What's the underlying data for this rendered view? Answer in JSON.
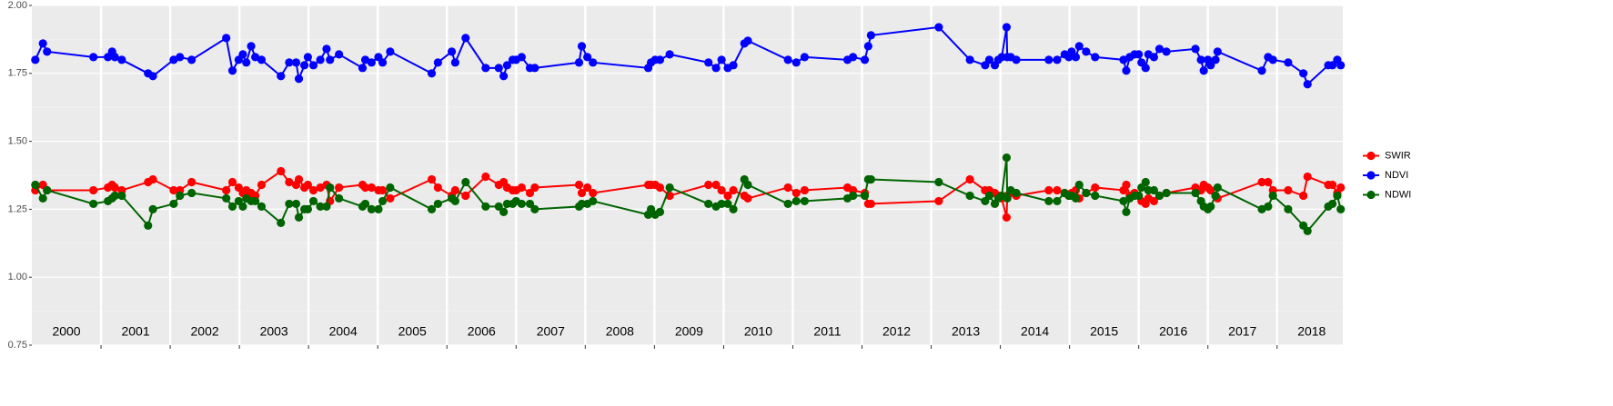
{
  "chart_data": {
    "type": "line",
    "x": [
      2000.05,
      2000.16,
      2000.22,
      2000.89,
      2001.1,
      2001.16,
      2001.2,
      2001.3,
      2001.68,
      2001.75,
      2002.05,
      2002.14,
      2002.31,
      2002.81,
      2002.9,
      2002.99,
      2003.05,
      2003.1,
      2003.17,
      2003.23,
      2003.32,
      2003.6,
      2003.72,
      2003.82,
      2003.86,
      2003.94,
      2003.99,
      2004.07,
      2004.17,
      2004.26,
      2004.31,
      2004.44,
      2004.78,
      2004.82,
      2004.91,
      2005.01,
      2005.07,
      2005.18,
      2005.78,
      2005.87,
      2006.07,
      2006.12,
      2006.27,
      2006.56,
      2006.75,
      2006.82,
      2006.87,
      2006.95,
      2007.0,
      2007.08,
      2007.2,
      2007.27,
      2007.91,
      2007.95,
      2008.03,
      2008.11,
      2008.91,
      2008.95,
      2009.01,
      2009.08,
      2009.22,
      2009.78,
      2009.89,
      2009.97,
      2010.06,
      2010.14,
      2010.3,
      2010.35,
      2010.93,
      2011.05,
      2011.17,
      2011.79,
      2011.87,
      2012.04,
      2012.09,
      2012.13,
      2013.11,
      2013.56,
      2013.78,
      2013.84,
      2013.92,
      2013.97,
      2014.02,
      2014.09,
      2014.1,
      2014.15,
      2014.23,
      2014.7,
      2014.82,
      2014.93,
      2014.99,
      2015.03,
      2015.09,
      2015.14,
      2015.24,
      2015.37,
      2015.78,
      2015.82,
      2015.87,
      2015.94,
      2016.0,
      2016.04,
      2016.1,
      2016.14,
      2016.22,
      2016.3,
      2016.4,
      2016.82,
      2016.9,
      2016.94,
      2017.0,
      2017.04,
      2017.11,
      2017.14,
      2017.78,
      2017.87,
      2017.94,
      2018.16,
      2018.38,
      2018.44,
      2018.74,
      2018.8,
      2018.87,
      2018.92
    ],
    "series": [
      {
        "name": "SWIR",
        "color": "#ff0000",
        "values": [
          1.32,
          1.34,
          1.32,
          1.32,
          1.33,
          1.34,
          1.33,
          1.32,
          1.35,
          1.36,
          1.32,
          1.32,
          1.35,
          1.32,
          1.35,
          1.33,
          1.31,
          1.32,
          1.31,
          1.3,
          1.34,
          1.39,
          1.35,
          1.34,
          1.36,
          1.33,
          1.34,
          1.32,
          1.33,
          1.34,
          1.28,
          1.33,
          1.34,
          1.33,
          1.33,
          1.32,
          1.32,
          1.29,
          1.36,
          1.33,
          1.3,
          1.32,
          1.3,
          1.37,
          1.34,
          1.35,
          1.33,
          1.32,
          1.32,
          1.33,
          1.31,
          1.33,
          1.34,
          1.31,
          1.33,
          1.31,
          1.34,
          1.34,
          1.34,
          1.33,
          1.3,
          1.34,
          1.34,
          1.32,
          1.3,
          1.32,
          1.3,
          1.29,
          1.33,
          1.31,
          1.32,
          1.33,
          1.32,
          1.31,
          1.27,
          1.27,
          1.28,
          1.36,
          1.32,
          1.32,
          1.31,
          1.3,
          1.29,
          1.22,
          1.3,
          1.31,
          1.3,
          1.32,
          1.32,
          1.31,
          1.3,
          1.31,
          1.32,
          1.29,
          1.31,
          1.33,
          1.32,
          1.34,
          1.3,
          1.31,
          1.3,
          1.28,
          1.27,
          1.29,
          1.28,
          1.3,
          1.31,
          1.33,
          1.32,
          1.34,
          1.33,
          1.32,
          1.3,
          1.29,
          1.35,
          1.35,
          1.32,
          1.32,
          1.3,
          1.37,
          1.34,
          1.34,
          1.31,
          1.33
        ]
      },
      {
        "name": "NDVI",
        "color": "#0000ff",
        "values": [
          1.8,
          1.86,
          1.83,
          1.81,
          1.81,
          1.83,
          1.81,
          1.8,
          1.75,
          1.74,
          1.8,
          1.81,
          1.8,
          1.88,
          1.76,
          1.8,
          1.82,
          1.79,
          1.85,
          1.81,
          1.8,
          1.74,
          1.79,
          1.79,
          1.73,
          1.78,
          1.81,
          1.78,
          1.8,
          1.84,
          1.8,
          1.82,
          1.77,
          1.8,
          1.79,
          1.81,
          1.79,
          1.83,
          1.75,
          1.79,
          1.83,
          1.79,
          1.88,
          1.77,
          1.77,
          1.74,
          1.78,
          1.8,
          1.8,
          1.81,
          1.77,
          1.77,
          1.79,
          1.85,
          1.81,
          1.79,
          1.77,
          1.79,
          1.8,
          1.8,
          1.82,
          1.79,
          1.77,
          1.8,
          1.77,
          1.78,
          1.86,
          1.87,
          1.8,
          1.79,
          1.81,
          1.8,
          1.81,
          1.8,
          1.85,
          1.89,
          1.92,
          1.8,
          1.78,
          1.8,
          1.78,
          1.8,
          1.81,
          1.92,
          1.81,
          1.81,
          1.8,
          1.8,
          1.8,
          1.82,
          1.81,
          1.83,
          1.81,
          1.85,
          1.83,
          1.81,
          1.8,
          1.76,
          1.81,
          1.82,
          1.82,
          1.79,
          1.77,
          1.82,
          1.81,
          1.84,
          1.83,
          1.84,
          1.8,
          1.76,
          1.8,
          1.78,
          1.8,
          1.83,
          1.76,
          1.81,
          1.8,
          1.79,
          1.75,
          1.71,
          1.78,
          1.78,
          1.8,
          1.78
        ]
      },
      {
        "name": "NDWI",
        "color": "#006400",
        "values": [
          1.34,
          1.29,
          1.32,
          1.27,
          1.28,
          1.29,
          1.3,
          1.3,
          1.19,
          1.25,
          1.27,
          1.3,
          1.31,
          1.29,
          1.26,
          1.28,
          1.26,
          1.29,
          1.28,
          1.28,
          1.26,
          1.2,
          1.27,
          1.27,
          1.22,
          1.25,
          1.25,
          1.28,
          1.26,
          1.26,
          1.33,
          1.29,
          1.26,
          1.27,
          1.25,
          1.25,
          1.28,
          1.33,
          1.25,
          1.27,
          1.29,
          1.28,
          1.35,
          1.26,
          1.26,
          1.24,
          1.27,
          1.27,
          1.28,
          1.27,
          1.27,
          1.25,
          1.26,
          1.27,
          1.27,
          1.28,
          1.23,
          1.25,
          1.23,
          1.24,
          1.33,
          1.27,
          1.26,
          1.27,
          1.27,
          1.25,
          1.36,
          1.34,
          1.27,
          1.28,
          1.28,
          1.29,
          1.3,
          1.3,
          1.36,
          1.36,
          1.35,
          1.3,
          1.28,
          1.3,
          1.27,
          1.29,
          1.3,
          1.44,
          1.29,
          1.32,
          1.31,
          1.28,
          1.28,
          1.31,
          1.3,
          1.3,
          1.29,
          1.34,
          1.31,
          1.3,
          1.28,
          1.24,
          1.29,
          1.3,
          1.3,
          1.33,
          1.35,
          1.32,
          1.32,
          1.3,
          1.31,
          1.31,
          1.28,
          1.26,
          1.25,
          1.26,
          1.3,
          1.33,
          1.25,
          1.26,
          1.3,
          1.25,
          1.19,
          1.17,
          1.26,
          1.27,
          1.3,
          1.25
        ]
      }
    ],
    "xlim": [
      2000,
      2018.95
    ],
    "xticks": [
      2001,
      2002,
      2003,
      2004,
      2005,
      2006,
      2007,
      2008,
      2009,
      2010,
      2011,
      2012,
      2013,
      2014,
      2015,
      2016,
      2017,
      2018
    ],
    "year_labels": [
      {
        "value": 2000.5,
        "label": "2000"
      },
      {
        "value": 2001.5,
        "label": "2001"
      },
      {
        "value": 2002.5,
        "label": "2002"
      },
      {
        "value": 2003.5,
        "label": "2003"
      },
      {
        "value": 2004.5,
        "label": "2004"
      },
      {
        "value": 2005.5,
        "label": "2005"
      },
      {
        "value": 2006.5,
        "label": "2006"
      },
      {
        "value": 2007.5,
        "label": "2007"
      },
      {
        "value": 2008.5,
        "label": "2008"
      },
      {
        "value": 2009.5,
        "label": "2009"
      },
      {
        "value": 2010.5,
        "label": "2010"
      },
      {
        "value": 2011.5,
        "label": "2011"
      },
      {
        "value": 2012.5,
        "label": "2012"
      },
      {
        "value": 2013.5,
        "label": "2013"
      },
      {
        "value": 2014.5,
        "label": "2014"
      },
      {
        "value": 2015.5,
        "label": "2015"
      },
      {
        "value": 2016.5,
        "label": "2016"
      },
      {
        "value": 2017.5,
        "label": "2017"
      },
      {
        "value": 2018.5,
        "label": "2018"
      }
    ],
    "ylim": [
      0.75,
      2.0
    ],
    "yticks": [
      0.75,
      {
        "value": 1.0,
        "label": "1.00"
      },
      1.25,
      {
        "value": 1.5,
        "label": "1.50"
      },
      1.75,
      {
        "value": 2.0,
        "label": "2.00"
      }
    ],
    "grid": true,
    "legend": "right"
  }
}
